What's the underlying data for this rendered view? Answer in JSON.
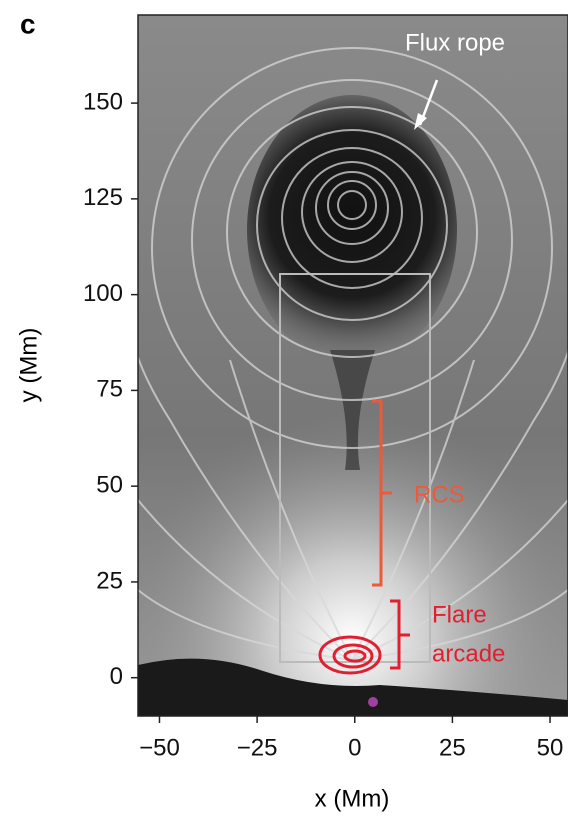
{
  "chart_data": {
    "type": "image",
    "panel_label": "c",
    "xlabel": "x (Mm)",
    "ylabel": "y (Mm)",
    "xlim": [
      -55.5,
      54.6
    ],
    "ylim": [
      -10,
      173
    ],
    "xticks": [
      {
        "value": -50,
        "label": "−50"
      },
      {
        "value": -25,
        "label": "−25"
      },
      0,
      25,
      50
    ],
    "yticks": [
      0,
      25,
      50,
      75,
      100,
      125,
      150
    ],
    "annotations": {
      "flux_rope": "Flux rope",
      "rcs": "RCS",
      "flare_arcade": [
        "Flare",
        "arcade"
      ]
    }
  }
}
